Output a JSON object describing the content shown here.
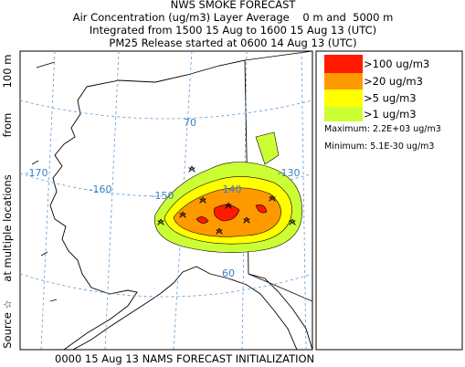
{
  "header": {
    "title": "NWS SMOKE FORECAST",
    "lines": [
      "Air Concentration (ug/m3) Layer Average    0 m and  5000 m",
      "Integrated from 1500 15 Aug to 1600 15 Aug 13 (UTC)",
      "PM25 Release started at 0600 14 Aug 13 (UTC)"
    ]
  },
  "side_label": [
    "Source ☆",
    "at multiple locations",
    "from",
    "100 m"
  ],
  "legend": {
    "items": [
      {
        "label": ">100 ug/m3",
        "color": "#ff1a00"
      },
      {
        "label": ">20 ug/m3",
        "color": "#ff9900"
      },
      {
        "label": ">5 ug/m3",
        "color": "#ffff00"
      },
      {
        "label": ">1 ug/m3",
        "color": "#ccff33"
      }
    ],
    "maximum": "Maximum: 2.2E+03 ug/m3",
    "minimum": "Minimum: 5.1E-30 ug/m3"
  },
  "map": {
    "labels": [
      "-170",
      "-160",
      "-150",
      "-140",
      "-130",
      "70",
      "60"
    ]
  },
  "footer": "0000 15 Aug 13 NAMS FORECAST INITIALIZATION"
}
